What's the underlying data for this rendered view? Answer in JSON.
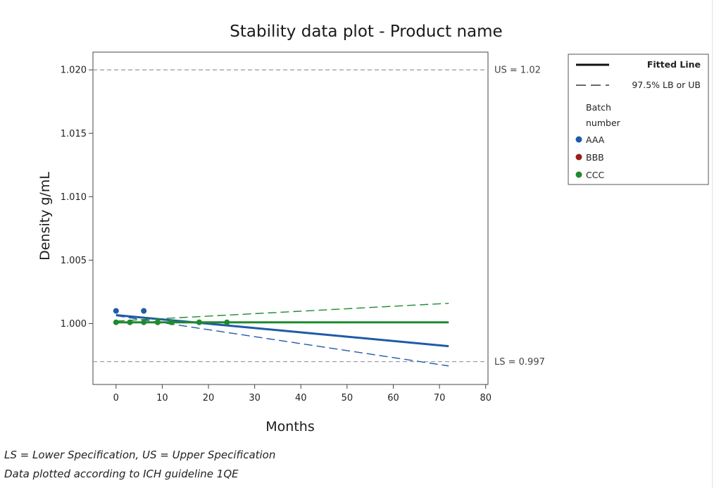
{
  "chart_data": {
    "type": "scatter",
    "title": "Stability data plot - Product name",
    "xlabel": "Months",
    "ylabel": "Density g/mL",
    "xlim": [
      -5,
      80.5
    ],
    "ylim": [
      0.9952,
      1.0214
    ],
    "xticks": [
      0,
      10,
      20,
      30,
      40,
      50,
      60,
      70,
      80
    ],
    "yticks": [
      1.0,
      1.005,
      1.01,
      1.015,
      1.02
    ],
    "ytick_labels": [
      "1.000",
      "1.005",
      "1.010",
      "1.015",
      "1.020"
    ],
    "reference_lines": [
      {
        "label": "US = 1.02",
        "y": 1.02
      },
      {
        "label": "LS = 0.997",
        "y": 0.997
      }
    ],
    "legend": {
      "placement": "right",
      "line_entries": [
        {
          "label": "Fitted Line",
          "style": "solid"
        },
        {
          "label": "97.5% LB or UB",
          "style": "dashed"
        }
      ],
      "group_title_1": "Batch",
      "group_title_2": "number"
    },
    "series": [
      {
        "name": "AAA",
        "color": "#1f5aa8",
        "points": [
          [
            0,
            1.001
          ],
          [
            3,
            1.0001
          ],
          [
            6,
            1.001
          ],
          [
            9,
            1.0001
          ],
          [
            12,
            1.0001
          ],
          [
            18,
            1.0001
          ]
        ],
        "fit": {
          "x0": 0,
          "y0": 1.00067,
          "x1": 72,
          "y1": 0.99822
        },
        "bound": {
          "x0": 0,
          "y0": 1.00062,
          "x1": 72,
          "y1": 0.99666
        }
      },
      {
        "name": "BBB",
        "color": "#9b1c1c",
        "points": [],
        "fit": null,
        "bound": null
      },
      {
        "name": "CCC",
        "color": "#1f8a2e",
        "points": [
          [
            0,
            1.0001
          ],
          [
            3,
            1.0001
          ],
          [
            6,
            1.0001
          ],
          [
            9,
            1.0001
          ],
          [
            12,
            1.0001
          ],
          [
            18,
            1.0001
          ],
          [
            24,
            1.0001
          ]
        ],
        "fit": {
          "x0": 0,
          "y0": 1.0001,
          "x1": 72,
          "y1": 1.0001
        },
        "bound": {
          "x0": 0,
          "y0": 1.0002,
          "x1": 72,
          "y1": 1.0016
        }
      }
    ]
  },
  "footnotes": {
    "line1": "LS = Lower Specification, US = Upper Specification",
    "line2": "Data plotted according to ICH guideline 1QE"
  }
}
